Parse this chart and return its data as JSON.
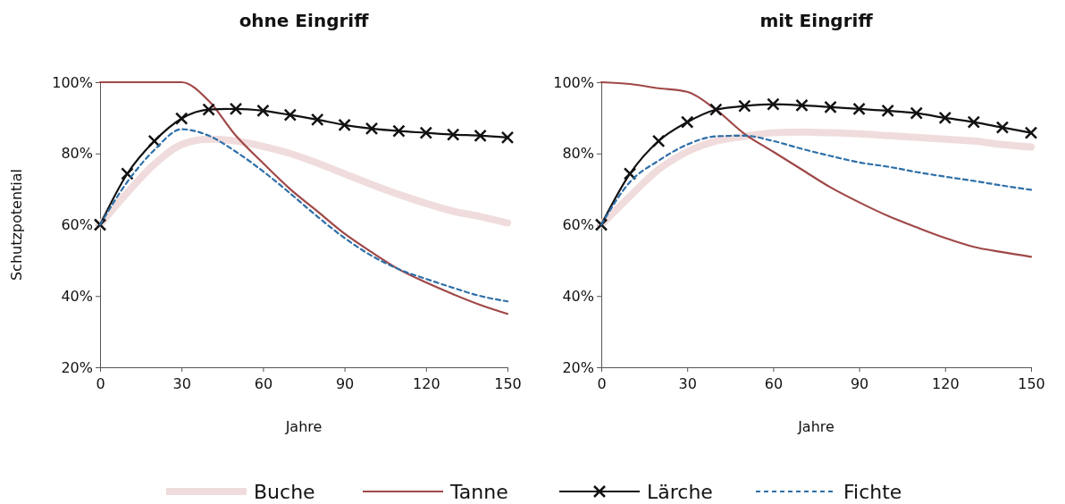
{
  "chart_data": [
    {
      "type": "line",
      "title": "ohne Eingriff",
      "xlabel": "Jahre",
      "ylabel": "Schutzpotential",
      "x": [
        0,
        10,
        20,
        30,
        40,
        50,
        60,
        70,
        80,
        90,
        100,
        110,
        120,
        130,
        140,
        150
      ],
      "xlim": [
        0,
        150
      ],
      "xticks": [
        0,
        30,
        60,
        90,
        120,
        150
      ],
      "ylim": [
        20,
        100
      ],
      "yticks": [
        {
          "value": 20,
          "label": "20%"
        },
        {
          "value": 40,
          "label": "40%"
        },
        {
          "value": 60,
          "label": "60%"
        },
        {
          "value": 80,
          "label": "80%"
        },
        {
          "value": 100,
          "label": "100%"
        }
      ],
      "grid": false,
      "legend": "bottom",
      "series": [
        {
          "name": "Buche",
          "color": "#f0dcdc",
          "line_style": "solid",
          "marker": "none",
          "values": [
            60,
            69,
            77,
            82.5,
            84,
            83.5,
            82,
            80,
            77.3,
            74.3,
            71.3,
            68.5,
            66,
            63.8,
            62.3,
            60.5
          ]
        },
        {
          "name": "Tanne",
          "color": "#a04848",
          "line_style": "solid",
          "marker": "none",
          "values": [
            100,
            100,
            100,
            100,
            94.8,
            85,
            77.3,
            70,
            63.8,
            57.5,
            52.3,
            47.5,
            43.8,
            40.5,
            37.5,
            35
          ]
        },
        {
          "name": "Lärche",
          "color": "#111111",
          "line_style": "solid",
          "marker": "cross",
          "values": [
            60,
            74.3,
            83.5,
            89.8,
            92.3,
            92.5,
            92,
            90.8,
            89.5,
            88,
            87,
            86.3,
            85.8,
            85.3,
            85,
            84.5
          ]
        },
        {
          "name": "Fichte",
          "color": "#2e6fa8",
          "line_style": "dashed",
          "marker": "none",
          "values": [
            60,
            72,
            81,
            86.8,
            85,
            80.5,
            75,
            68.8,
            62.3,
            56.3,
            51.3,
            47.5,
            44.8,
            42.3,
            40,
            38.5
          ]
        }
      ]
    },
    {
      "type": "line",
      "title": "mit Eingriff",
      "xlabel": "Jahre",
      "x": [
        0,
        10,
        20,
        30,
        40,
        50,
        60,
        70,
        80,
        90,
        100,
        110,
        120,
        130,
        140,
        150
      ],
      "xlim": [
        0,
        150
      ],
      "xticks": [
        0,
        30,
        60,
        90,
        120,
        150
      ],
      "ylim": [
        20,
        100
      ],
      "yticks": [
        {
          "value": 20,
          "label": "20%"
        },
        {
          "value": 40,
          "label": "40%"
        },
        {
          "value": 60,
          "label": "60%"
        },
        {
          "value": 80,
          "label": "80%"
        },
        {
          "value": 100,
          "label": "100%"
        }
      ],
      "grid": false,
      "series": [
        {
          "color": "#f0dcdc",
          "line_style": "solid",
          "marker": "none",
          "values": [
            60,
            68,
            75.5,
            80.5,
            83.5,
            84.8,
            85.8,
            86,
            85.8,
            85.5,
            85,
            84.5,
            84,
            83.5,
            82.5,
            81.8
          ]
        },
        {
          "color": "#a04848",
          "line_style": "solid",
          "marker": "none",
          "values": [
            100,
            99.5,
            98.3,
            97.3,
            92.3,
            85.5,
            80.5,
            75.5,
            70.5,
            66.3,
            62.5,
            59.3,
            56.3,
            53.8,
            52.3,
            51
          ]
        },
        {
          "color": "#111111",
          "line_style": "solid",
          "marker": "cross",
          "values": [
            60,
            74.3,
            83.5,
            88.8,
            92.3,
            93.3,
            93.8,
            93.5,
            93,
            92.5,
            92,
            91.3,
            90,
            88.8,
            87.3,
            85.8
          ]
        },
        {
          "color": "#2e6fa8",
          "line_style": "dashed",
          "marker": "none",
          "values": [
            60,
            72,
            78,
            82.5,
            84.8,
            85,
            83.5,
            81.3,
            79.3,
            77.5,
            76.3,
            74.8,
            73.5,
            72.3,
            71,
            69.8
          ]
        }
      ]
    }
  ]
}
